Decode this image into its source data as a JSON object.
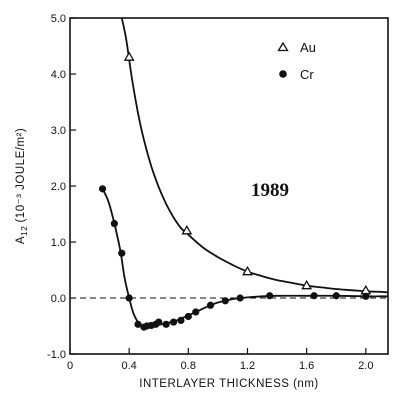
{
  "chart_data": {
    "type": "scatter",
    "xlabel": "INTERLAYER THICKNESS (nm)",
    "ylabel": "A",
    "ylabel_sub": "12",
    "ylabel_unit": "(10⁻³ JOULE/m²)",
    "annotation": "1989",
    "xlim": [
      0,
      2.15
    ],
    "ylim": [
      -1.0,
      5.0
    ],
    "x_ticks": [
      0,
      0.4,
      0.8,
      1.2,
      1.6,
      2.0
    ],
    "x_tick_labels": [
      "0",
      "0.4",
      "0.8",
      "1.2",
      "1.6",
      "2.0"
    ],
    "y_ticks": [
      -1.0,
      0.0,
      1.0,
      2.0,
      3.0,
      4.0,
      5.0
    ],
    "y_tick_labels": [
      "-1.0",
      "0.0",
      "1.0",
      "2.0",
      "3.0",
      "4.0",
      "5.0"
    ],
    "zero_line": "dashed",
    "grid": false,
    "legend_position": "top-right",
    "series": [
      {
        "name": "Au",
        "marker": "open-triangle",
        "x": [
          0.4,
          0.79,
          1.2,
          1.6,
          2.0
        ],
        "y": [
          4.3,
          1.2,
          0.47,
          0.22,
          0.13
        ],
        "curve_x": [
          0.35,
          0.38,
          0.42,
          0.46,
          0.5,
          0.55,
          0.6,
          0.65,
          0.7,
          0.75,
          0.8,
          0.9,
          1.0,
          1.1,
          1.2,
          1.3,
          1.4,
          1.5,
          1.6,
          1.7,
          1.8,
          1.9,
          2.0,
          2.1,
          2.15
        ],
        "curve_y": [
          5.0,
          4.62,
          3.9,
          3.3,
          2.82,
          2.35,
          1.98,
          1.68,
          1.44,
          1.25,
          1.13,
          0.9,
          0.73,
          0.59,
          0.47,
          0.39,
          0.32,
          0.27,
          0.22,
          0.19,
          0.16,
          0.14,
          0.12,
          0.11,
          0.1
        ]
      },
      {
        "name": "Cr",
        "marker": "filled-circle",
        "x": [
          0.22,
          0.3,
          0.35,
          0.4,
          0.46,
          0.5,
          0.52,
          0.55,
          0.58,
          0.6,
          0.65,
          0.7,
          0.75,
          0.8,
          0.85,
          0.95,
          1.05,
          1.15,
          1.35,
          1.65,
          1.8,
          2.0
        ],
        "y": [
          1.95,
          1.33,
          0.8,
          0.0,
          -0.47,
          -0.52,
          -0.5,
          -0.49,
          -0.47,
          -0.43,
          -0.47,
          -0.43,
          -0.4,
          -0.33,
          -0.25,
          -0.13,
          -0.05,
          0.0,
          0.04,
          0.04,
          0.04,
          0.03
        ],
        "curve_x": [
          0.22,
          0.26,
          0.3,
          0.34,
          0.37,
          0.4,
          0.43,
          0.46,
          0.5,
          0.55,
          0.6,
          0.65,
          0.7,
          0.75,
          0.8,
          0.85,
          0.9,
          0.95,
          1.0,
          1.1,
          1.2,
          1.3,
          1.4,
          1.6,
          1.8,
          2.0,
          2.15
        ],
        "curve_y": [
          1.95,
          1.72,
          1.33,
          0.85,
          0.35,
          0.0,
          -0.28,
          -0.43,
          -0.52,
          -0.51,
          -0.48,
          -0.45,
          -0.42,
          -0.37,
          -0.31,
          -0.25,
          -0.19,
          -0.13,
          -0.08,
          -0.02,
          0.01,
          0.03,
          0.04,
          0.04,
          0.04,
          0.03,
          0.03
        ]
      }
    ]
  }
}
